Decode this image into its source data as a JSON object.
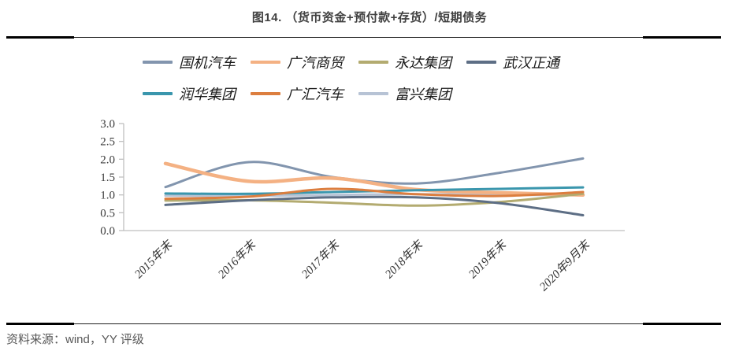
{
  "page": {
    "title": "图14. （货币资金+预付款+存货）/短期债务",
    "source": "资料来源：wind，YY 评级"
  },
  "chart_data": {
    "type": "line",
    "title": "（货币资金+预付款+存货）/短期债务",
    "line_style": "smooth",
    "grid": false,
    "legend_position": "top",
    "categories": [
      "2015年末",
      "2016年末",
      "2017年末",
      "2018年末",
      "2019年末",
      "2020年9月末"
    ],
    "y_ticks": [
      "3.0",
      "2.5",
      "2.0",
      "1.5",
      "1.0",
      "0.5",
      "0.0"
    ],
    "ylim": [
      0.0,
      3.0
    ],
    "axis_color": "#bfbfbf",
    "series": [
      {
        "name": "国机汽车",
        "color": "#8295ae",
        "width": 3,
        "values": [
          1.22,
          1.92,
          1.5,
          1.32,
          1.62,
          2.02
        ]
      },
      {
        "name": "广汽商贸",
        "color": "#f4b183",
        "width": 4.5,
        "values": [
          1.88,
          1.38,
          1.47,
          1.15,
          1.06,
          1.0
        ]
      },
      {
        "name": "永达集团",
        "color": "#b3ab70",
        "width": 3,
        "values": [
          0.84,
          0.85,
          0.78,
          0.7,
          0.8,
          1.03
        ]
      },
      {
        "name": "武汉正通",
        "color": "#5d6e85",
        "width": 3,
        "values": [
          0.72,
          0.85,
          0.93,
          0.93,
          0.77,
          0.43
        ]
      },
      {
        "name": "润华集团",
        "color": "#3a96ad",
        "width": 3,
        "values": [
          1.04,
          1.03,
          1.08,
          1.13,
          1.17,
          1.21
        ]
      },
      {
        "name": "广汇汽车",
        "color": "#dc7e3f",
        "width": 3,
        "values": [
          0.89,
          0.95,
          1.17,
          1.02,
          0.97,
          1.08
        ]
      },
      {
        "name": "富兴集团",
        "color": "#b7c3d5",
        "width": 3,
        "values": [
          0.98,
          0.97,
          1.0,
          1.02,
          1.0,
          1.0
        ]
      }
    ],
    "draw_order": [
      6,
      0,
      1,
      2,
      3,
      4,
      5
    ]
  }
}
